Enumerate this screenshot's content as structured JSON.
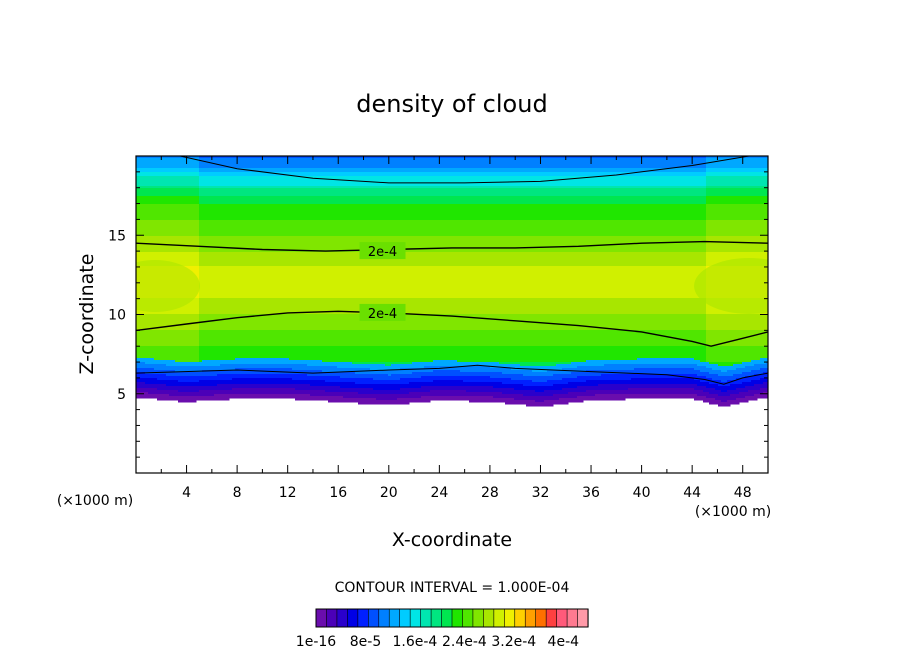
{
  "chart_data": {
    "type": "heatmap",
    "title": "density of cloud",
    "xlabel": "X-coordinate",
    "ylabel": "Z-coordinate",
    "x_unit_left": "(×1000 m)",
    "x_unit_right": "(×1000 m)",
    "xlim": [
      0,
      50
    ],
    "ylim": [
      0,
      20
    ],
    "x_ticks": [
      4,
      8,
      12,
      16,
      20,
      24,
      28,
      32,
      36,
      40,
      44,
      48
    ],
    "y_ticks": [
      5,
      10,
      15
    ],
    "contour_interval_text": "CONTOUR INTERVAL = 1.000E-04",
    "contour_labels": [
      {
        "text": "2e-4",
        "x": 18,
        "z": 14.0
      },
      {
        "text": "2e-4",
        "x": 18,
        "z": 10.1
      }
    ],
    "contour_lines": {
      "upper_2e4": [
        [
          0,
          14.5
        ],
        [
          5,
          14.3
        ],
        [
          10,
          14.1
        ],
        [
          15,
          14.0
        ],
        [
          20,
          14.1
        ],
        [
          25,
          14.2
        ],
        [
          30,
          14.2
        ],
        [
          35,
          14.3
        ],
        [
          40,
          14.5
        ],
        [
          45,
          14.6
        ],
        [
          50,
          14.5
        ]
      ],
      "lower_2e4": [
        [
          0,
          9.0
        ],
        [
          4,
          9.4
        ],
        [
          8,
          9.8
        ],
        [
          12,
          10.1
        ],
        [
          16,
          10.2
        ],
        [
          20,
          10.1
        ],
        [
          25,
          9.9
        ],
        [
          30,
          9.6
        ],
        [
          35,
          9.3
        ],
        [
          40,
          8.9
        ],
        [
          44,
          8.3
        ],
        [
          45.5,
          8.0
        ],
        [
          48,
          8.5
        ],
        [
          50,
          8.9
        ]
      ],
      "top_1e4": [
        [
          3.5,
          20
        ],
        [
          8,
          19.2
        ],
        [
          14,
          18.6
        ],
        [
          20,
          18.3
        ],
        [
          26,
          18.3
        ],
        [
          32,
          18.4
        ],
        [
          38,
          18.8
        ],
        [
          44,
          19.4
        ],
        [
          48.5,
          20
        ]
      ],
      "base_1e4": [
        [
          0,
          6.3
        ],
        [
          8,
          6.5
        ],
        [
          14,
          6.3
        ],
        [
          20,
          6.5
        ],
        [
          24,
          6.6
        ],
        [
          27,
          6.8
        ],
        [
          30,
          6.6
        ],
        [
          36,
          6.4
        ],
        [
          42,
          6.2
        ],
        [
          45,
          5.9
        ],
        [
          46.5,
          5.6
        ],
        [
          48,
          6.0
        ],
        [
          50,
          6.3
        ]
      ]
    },
    "cloud_base_z": [
      [
        0,
        4.8
      ],
      [
        4,
        4.5
      ],
      [
        8,
        4.7
      ],
      [
        12,
        4.7
      ],
      [
        16,
        4.5
      ],
      [
        20,
        4.3
      ],
      [
        24,
        4.6
      ],
      [
        28,
        4.5
      ],
      [
        32,
        4.2
      ],
      [
        36,
        4.6
      ],
      [
        40,
        4.7
      ],
      [
        44,
        4.7
      ],
      [
        46.5,
        4.2
      ],
      [
        50,
        4.8
      ]
    ],
    "colorbar": {
      "min": 1e-16,
      "max": 0.00044,
      "tick_labels": [
        "1e-16",
        "8e-5",
        "1.6e-4",
        "2.4e-4",
        "3.2e-4",
        "4e-4"
      ],
      "tick_values": [
        1e-16,
        8e-05,
        0.00016,
        0.00024,
        0.00032,
        0.0004
      ],
      "colors": [
        "#6a0dad",
        "#4b00b8",
        "#2a00cc",
        "#0000e6",
        "#0020ff",
        "#0050ff",
        "#0080ff",
        "#00a8ff",
        "#00ccff",
        "#00e5e5",
        "#00e6b0",
        "#00e680",
        "#00e650",
        "#20e600",
        "#50e600",
        "#80e600",
        "#a8e600",
        "#d0f000",
        "#f0f000",
        "#ffd000",
        "#ffa000",
        "#ff7000",
        "#ff4040",
        "#ff5a7a",
        "#ff7a90",
        "#ff9aa8"
      ]
    }
  }
}
